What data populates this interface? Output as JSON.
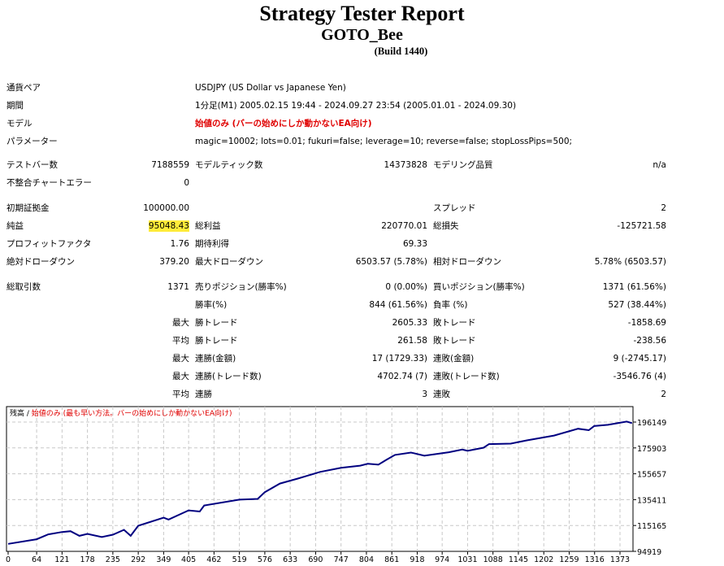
{
  "header": {
    "title": "Strategy Tester Report",
    "expert": "GOTO_Bee",
    "build": "(Build 1440)"
  },
  "info": [
    {
      "label": "通貨ペア",
      "value": "USDJPY (US Dollar vs Japanese Yen)"
    },
    {
      "label": "期間",
      "value": "1分足(M1) 2005.02.15 19:44 - 2024.09.27 23:54 (2005.01.01 - 2024.09.30)"
    },
    {
      "label": "モデル",
      "value": "始値のみ (バーの始めにしか動かないEA向け)",
      "color": "#e00000"
    },
    {
      "label": "パラメーター",
      "value": "magic=10002; lots=0.01; fukuri=false; leverage=10; reverse=false; stopLossPips=500;"
    }
  ],
  "stats": [
    [
      "テストバー数",
      "7188559",
      "モデルティック数",
      "14373828",
      "モデリング品質",
      "n/a"
    ],
    [
      "不整合チャートエラー",
      "0",
      "",
      "",
      "",
      ""
    ],
    [
      "初期証拠金",
      "100000.00",
      "",
      "",
      "スプレッド",
      "2"
    ],
    [
      "純益",
      "95048.43",
      "総利益",
      "220770.01",
      "総損失",
      "-125721.58"
    ],
    [
      "プロフィットファクタ",
      "1.76",
      "期待利得",
      "69.33",
      "",
      ""
    ],
    [
      "絶対ドローダウン",
      "379.20",
      "最大ドローダウン",
      "6503.57 (5.78%)",
      "相対ドローダウン",
      "5.78% (6503.57)"
    ],
    [
      "総取引数",
      "1371",
      "売りポジション(勝率%)",
      "0 (0.00%)",
      "買いポジション(勝率%)",
      "1371 (61.56%)"
    ],
    [
      "",
      "",
      "勝率(%)",
      "844 (61.56%)",
      "負率 (%)",
      "527 (38.44%)"
    ],
    [
      "",
      "最大",
      "勝トレード",
      "2605.33",
      "敗トレード",
      "-1858.69"
    ],
    [
      "",
      "平均",
      "勝トレード",
      "261.58",
      "敗トレード",
      "-238.56"
    ],
    [
      "",
      "最大",
      "連勝(金額)",
      "17 (1729.33)",
      "連敗(金額)",
      "9 (-2745.17)"
    ],
    [
      "",
      "最大",
      "連勝(トレード数)",
      "4702.74 (7)",
      "連敗(トレード数)",
      "-3546.76 (4)"
    ],
    [
      "",
      "平均",
      "連勝",
      "3",
      "連敗",
      "2"
    ]
  ],
  "highlight_color": "#ffec3a",
  "chart_data": {
    "type": "line",
    "legend_prefix": "残高",
    "legend_text": "始値のみ (最も早い方法。バーの始めにしか動かないEA向け)",
    "legend_color": "#e00000",
    "line_color": "#000080",
    "grid": true,
    "ylim": [
      94919,
      216395
    ],
    "xlim": [
      0,
      1410
    ],
    "yticks": [
      94919,
      115165,
      135411,
      155657,
      175903,
      196149
    ],
    "xticks": [
      0,
      64,
      121,
      178,
      235,
      292,
      349,
      405,
      462,
      519,
      576,
      633,
      690,
      747,
      804,
      861,
      918,
      974,
      1031,
      1088,
      1145,
      1202,
      1259,
      1316,
      1373
    ],
    "x": [
      0,
      64,
      90,
      121,
      140,
      160,
      178,
      210,
      235,
      260,
      275,
      292,
      349,
      360,
      405,
      430,
      440,
      519,
      560,
      576,
      610,
      650,
      700,
      747,
      790,
      807,
      831,
      849,
      868,
      904,
      934,
      989,
      1019,
      1031,
      1067,
      1079,
      1128,
      1164,
      1225,
      1279,
      1303,
      1315,
      1346,
      1388,
      1400
    ],
    "y": [
      100800,
      104400,
      108200,
      110100,
      110700,
      107100,
      108600,
      106100,
      108000,
      111800,
      107100,
      115000,
      121300,
      119800,
      127000,
      126100,
      130800,
      135400,
      136000,
      141300,
      148000,
      151900,
      157100,
      160300,
      162000,
      163500,
      162800,
      166600,
      170400,
      172300,
      169800,
      172500,
      174600,
      173600,
      176100,
      178900,
      179300,
      181800,
      185600,
      190900,
      189800,
      193000,
      194000,
      196500,
      195300
    ]
  }
}
